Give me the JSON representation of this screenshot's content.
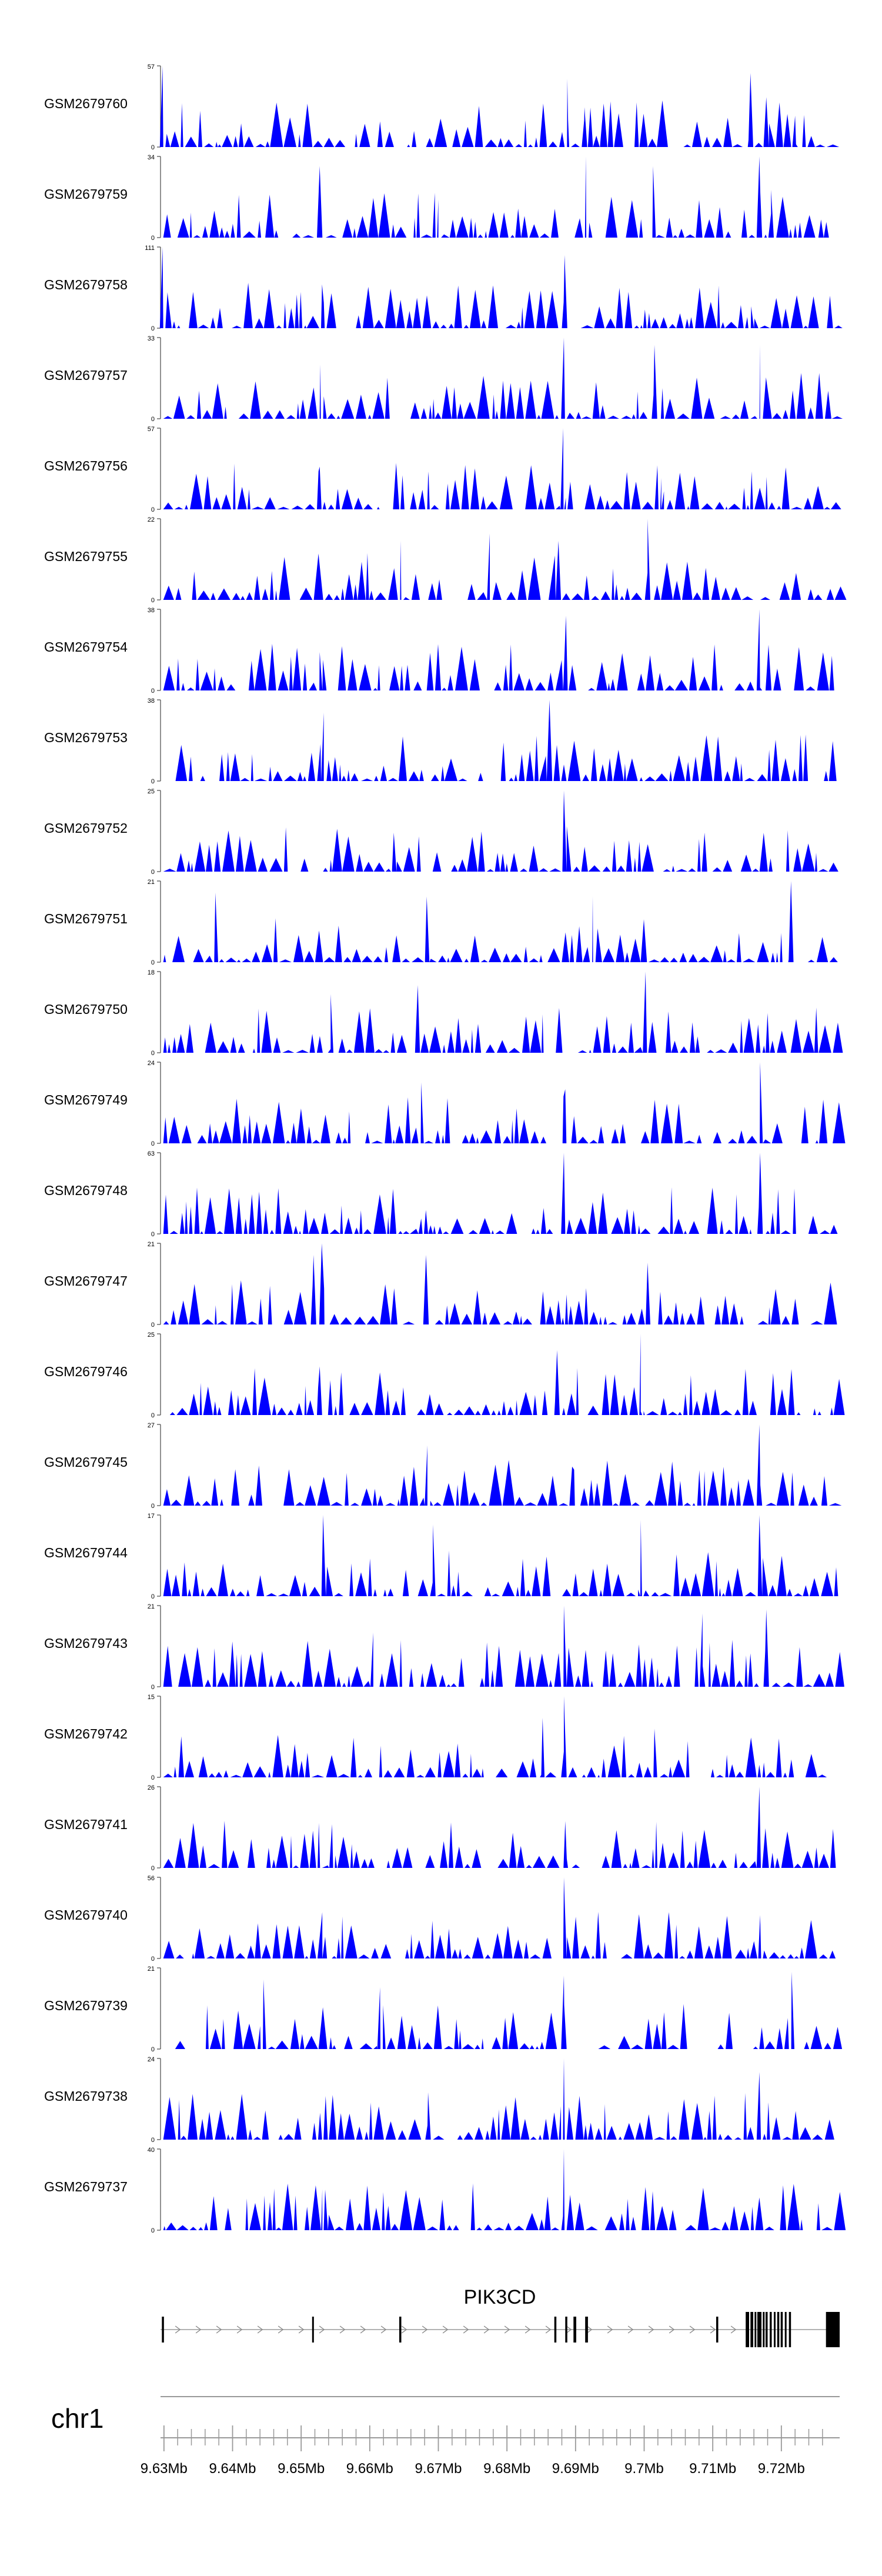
{
  "chart_data": {
    "type": "area",
    "title": "",
    "xlabel": "",
    "ylabel": "",
    "chromosome": "chr1",
    "xlim": [
      9.6295,
      9.7285
    ],
    "x_unit": "Mb",
    "x_ticks": [
      9.63,
      9.64,
      9.65,
      9.66,
      9.67,
      9.68,
      9.69,
      9.7,
      9.71,
      9.72
    ],
    "x_tick_labels": [
      "9.63Mb",
      "9.64Mb",
      "9.65Mb",
      "9.66Mb",
      "9.67Mb",
      "9.68Mb",
      "9.69Mb",
      "9.7Mb",
      "9.71Mb",
      "9.72Mb"
    ],
    "minor_tick_step": 0.002,
    "color": "#0000ff",
    "tracks": [
      {
        "name": "GSM2679760",
        "ymax": 57,
        "peaks": [
          [
            9.6298,
            57
          ],
          [
            9.6615,
            18
          ],
          [
            9.6888,
            48
          ],
          [
            9.6913,
            28
          ],
          [
            9.7155,
            52
          ],
          [
            9.7178,
            35
          ],
          [
            9.722,
            22
          ]
        ]
      },
      {
        "name": "GSM2679759",
        "ymax": 34,
        "peaks": [
          [
            9.6527,
            30
          ],
          [
            9.67,
            16
          ],
          [
            9.6915,
            34
          ],
          [
            9.7013,
            30
          ],
          [
            9.7168,
            34
          ],
          [
            9.7185,
            20
          ]
        ]
      },
      {
        "name": "GSM2679758",
        "ymax": 111,
        "peaks": [
          [
            9.6298,
            111
          ],
          [
            9.6533,
            35
          ],
          [
            9.6884,
            100
          ],
          [
            9.7156,
            30
          ]
        ]
      },
      {
        "name": "GSM2679757",
        "ymax": 33,
        "peaks": [
          [
            9.6528,
            22
          ],
          [
            9.6883,
            33
          ],
          [
            9.7015,
            30
          ],
          [
            9.7169,
            30
          ]
        ]
      },
      {
        "name": "GSM2679756",
        "ymax": 57,
        "peaks": [
          [
            9.6527,
            30
          ],
          [
            9.6685,
            22
          ],
          [
            9.6882,
            57
          ],
          [
            9.7025,
            22
          ]
        ]
      },
      {
        "name": "GSM2679755",
        "ymax": 22,
        "peaks": [
          [
            9.7005,
            22
          ],
          [
            9.6875,
            16
          ],
          [
            9.6775,
            18
          ],
          [
            9.6645,
            16
          ]
        ]
      },
      {
        "name": "GSM2679754",
        "ymax": 38,
        "peaks": [
          [
            9.6886,
            35
          ],
          [
            9.7168,
            38
          ],
          [
            9.6527,
            18
          ],
          [
            9.6655,
            12
          ]
        ]
      },
      {
        "name": "GSM2679753",
        "ymax": 38,
        "peaks": [
          [
            9.6533,
            32
          ],
          [
            9.6862,
            38
          ],
          [
            9.6795,
            18
          ]
        ]
      },
      {
        "name": "GSM2679752",
        "ymax": 25,
        "peaks": [
          [
            9.6883,
            25
          ],
          [
            9.6635,
            12
          ],
          [
            9.7088,
            12
          ]
        ]
      },
      {
        "name": "GSM2679751",
        "ymax": 21,
        "peaks": [
          [
            9.6375,
            18
          ],
          [
            9.7214,
            21
          ],
          [
            9.6683,
            17
          ],
          [
            9.6925,
            17
          ]
        ]
      },
      {
        "name": "GSM2679750",
        "ymax": 18,
        "peaks": [
          [
            9.7002,
            18
          ],
          [
            9.667,
            15
          ],
          [
            9.6543,
            13
          ]
        ]
      },
      {
        "name": "GSM2679749",
        "ymax": 24,
        "peaks": [
          [
            9.7169,
            24
          ],
          [
            9.6675,
            18
          ],
          [
            9.6885,
            16
          ]
        ]
      },
      {
        "name": "GSM2679748",
        "ymax": 63,
        "peaks": [
          [
            9.6883,
            63
          ],
          [
            9.7169,
            63
          ],
          [
            9.6675,
            12
          ]
        ]
      },
      {
        "name": "GSM2679747",
        "ymax": 21,
        "peaks": [
          [
            9.653,
            21
          ],
          [
            9.6518,
            18
          ],
          [
            9.6682,
            18
          ],
          [
            9.7005,
            16
          ]
        ]
      },
      {
        "name": "GSM2679746",
        "ymax": 25,
        "peaks": [
          [
            9.6995,
            25
          ],
          [
            9.6873,
            20
          ],
          [
            9.6527,
            15
          ]
        ]
      },
      {
        "name": "GSM2679745",
        "ymax": 27,
        "peaks": [
          [
            9.7168,
            27
          ],
          [
            9.6684,
            20
          ],
          [
            9.6895,
            13
          ]
        ]
      },
      {
        "name": "GSM2679744",
        "ymax": 17,
        "peaks": [
          [
            9.6532,
            17
          ],
          [
            9.6692,
            15
          ],
          [
            9.6995,
            16
          ],
          [
            9.7168,
            17
          ]
        ]
      },
      {
        "name": "GSM2679743",
        "ymax": 21,
        "peaks": [
          [
            9.6883,
            21
          ],
          [
            9.7085,
            19
          ],
          [
            9.7178,
            20
          ],
          [
            9.6605,
            14
          ]
        ]
      },
      {
        "name": "GSM2679742",
        "ymax": 15,
        "peaks": [
          [
            9.6883,
            15
          ],
          [
            9.6852,
            11
          ],
          [
            9.7015,
            9
          ]
        ]
      },
      {
        "name": "GSM2679741",
        "ymax": 26,
        "peaks": [
          [
            9.7168,
            26
          ],
          [
            9.6545,
            14
          ],
          [
            9.6885,
            15
          ]
        ]
      },
      {
        "name": "GSM2679740",
        "ymax": 56,
        "peaks": [
          [
            9.6883,
            56
          ],
          [
            9.7169,
            30
          ],
          [
            9.6535,
            15
          ]
        ]
      },
      {
        "name": "GSM2679739",
        "ymax": 21,
        "peaks": [
          [
            9.6445,
            18
          ],
          [
            9.6615,
            16
          ],
          [
            9.6883,
            19
          ],
          [
            9.7215,
            20
          ]
        ]
      },
      {
        "name": "GSM2679738",
        "ymax": 24,
        "peaks": [
          [
            9.6883,
            24
          ],
          [
            9.6685,
            14
          ],
          [
            9.7168,
            20
          ]
        ]
      },
      {
        "name": "GSM2679737",
        "ymax": 40,
        "peaks": [
          [
            9.6883,
            40
          ],
          [
            9.6535,
            20
          ],
          [
            9.6627,
            12
          ]
        ]
      }
    ],
    "gene": {
      "name": "PIK3CD",
      "start": 9.6295,
      "end": 9.7285,
      "strand": "+",
      "exons": [
        [
          9.6297,
          9.63
        ],
        [
          9.6516,
          9.6518
        ],
        [
          9.6643,
          9.6646
        ],
        [
          9.6869,
          9.6872
        ],
        [
          9.6885,
          9.6888
        ],
        [
          9.6897,
          9.6901
        ],
        [
          9.6914,
          9.6918
        ],
        [
          9.7105,
          9.7108
        ],
        [
          9.7148,
          9.7153
        ],
        [
          9.7155,
          9.7159
        ],
        [
          9.7161,
          9.7163
        ],
        [
          9.7165,
          9.7171
        ],
        [
          9.7173,
          9.7175
        ],
        [
          9.7177,
          9.718
        ],
        [
          9.7183,
          9.7186
        ],
        [
          9.7189,
          9.7191
        ],
        [
          9.7194,
          9.7197
        ],
        [
          9.7199,
          9.7202
        ],
        [
          9.7205,
          9.7207
        ],
        [
          9.7211,
          9.7214
        ],
        [
          9.7265,
          9.7285
        ]
      ],
      "thick_from": 9.7148
    }
  }
}
